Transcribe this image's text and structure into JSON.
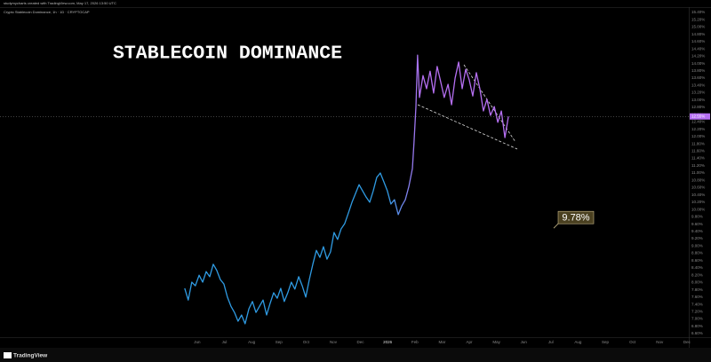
{
  "header": {
    "credit": "studymycharts created with TradingView.com, May 17, 2026 13:50 UTC",
    "symbol": "Crypto Stablecoin Dominance, 1h · 1D · CRYPTOCAP",
    "logo": "TradingView"
  },
  "chart_data": {
    "type": "line",
    "title": "STABLECOIN DOMINANCE",
    "x": [
      4.54,
      4.67,
      4.8,
      4.93,
      5.07,
      5.2,
      5.33,
      5.46,
      5.59,
      5.72,
      5.85,
      5.98,
      6.11,
      6.24,
      6.37,
      6.5,
      6.63,
      6.76,
      6.9,
      7.03,
      7.16,
      7.29,
      7.42,
      7.55,
      7.68,
      7.81,
      7.94,
      8.07,
      8.2,
      8.33,
      8.46,
      8.59,
      8.73,
      8.86,
      8.99,
      9.12,
      9.25,
      9.38,
      9.51,
      9.64,
      9.77,
      9.9,
      10.03,
      10.16,
      10.29,
      10.42,
      10.56,
      10.69,
      10.82,
      10.95,
      11.08,
      11.21,
      11.34,
      11.47,
      11.6,
      11.73,
      11.86,
      11.99,
      12.12,
      12.25,
      12.39,
      12.52,
      12.65,
      12.78,
      12.91,
      12.97,
      13.04,
      13.1,
      13.17,
      13.3,
      13.43,
      13.56,
      13.69,
      13.82,
      13.95,
      14.08,
      14.22,
      14.35,
      14.48,
      14.61,
      14.74,
      14.87,
      15.0,
      15.13,
      15.26,
      15.39,
      15.52,
      15.65,
      15.78,
      15.92,
      16.05,
      16.18,
      16.31,
      16.44
    ],
    "values": [
      7.84,
      7.52,
      8.01,
      7.91,
      8.2,
      8.01,
      8.3,
      8.16,
      8.5,
      8.33,
      8.08,
      7.96,
      7.6,
      7.35,
      7.18,
      6.94,
      7.11,
      6.87,
      7.28,
      7.48,
      7.18,
      7.35,
      7.52,
      7.11,
      7.43,
      7.72,
      7.57,
      7.84,
      7.48,
      7.72,
      8.01,
      7.82,
      8.16,
      7.91,
      7.6,
      8.08,
      8.5,
      8.88,
      8.69,
      8.98,
      8.64,
      8.84,
      9.37,
      9.18,
      9.47,
      9.61,
      9.91,
      10.2,
      10.44,
      10.68,
      10.51,
      10.34,
      10.2,
      10.51,
      10.88,
      11.0,
      10.76,
      10.51,
      10.15,
      10.27,
      9.86,
      10.1,
      10.27,
      10.63,
      11.12,
      11.85,
      12.82,
      14.23,
      13.07,
      13.67,
      13.31,
      13.79,
      13.19,
      13.92,
      13.5,
      13.07,
      13.43,
      12.87,
      13.6,
      14.04,
      13.31,
      13.84,
      13.55,
      13.11,
      13.75,
      13.31,
      12.7,
      13.02,
      12.58,
      12.82,
      12.39,
      12.7,
      11.97,
      12.55
    ],
    "last_value_label": "12.55%",
    "gradient": [
      "#2f9be3",
      "#b56ff2"
    ],
    "xlim": [
      -2.25,
      23.07
    ],
    "xticks": [
      {
        "value": 5,
        "label": "Jun"
      },
      {
        "value": 6,
        "label": "Jul"
      },
      {
        "value": 7,
        "label": "Aug"
      },
      {
        "value": 8,
        "label": "Sep"
      },
      {
        "value": 9,
        "label": "Oct"
      },
      {
        "value": 10,
        "label": "Nov"
      },
      {
        "value": 11,
        "label": "Dec"
      },
      {
        "value": 12,
        "label": "2026"
      },
      {
        "value": 13,
        "label": "Feb"
      },
      {
        "value": 14,
        "label": "Mar"
      },
      {
        "value": 15,
        "label": "Apr"
      },
      {
        "value": 16,
        "label": "May"
      },
      {
        "value": 17,
        "label": "Jun"
      },
      {
        "value": 18,
        "label": "Jul"
      },
      {
        "value": 19,
        "label": "Aug"
      },
      {
        "value": 20,
        "label": "Sep"
      },
      {
        "value": 21,
        "label": "Oct"
      },
      {
        "value": 22,
        "label": "Nov"
      },
      {
        "value": 23,
        "label": "Dec"
      }
    ],
    "ylim": [
      6.6,
      15.4
    ],
    "yticks": [
      {
        "value": 6.6,
        "label": "6.60%"
      },
      {
        "value": 6.8,
        "label": "6.80%"
      },
      {
        "value": 7,
        "label": "7.00%"
      },
      {
        "value": 7.2,
        "label": "7.20%"
      },
      {
        "value": 7.4,
        "label": "7.40%"
      },
      {
        "value": 7.6,
        "label": "7.60%"
      },
      {
        "value": 7.8,
        "label": "7.80%"
      },
      {
        "value": 8,
        "label": "8.00%"
      },
      {
        "value": 8.2,
        "label": "8.20%"
      },
      {
        "value": 8.4,
        "label": "8.40%"
      },
      {
        "value": 8.6,
        "label": "8.60%"
      },
      {
        "value": 8.8,
        "label": "8.80%"
      },
      {
        "value": 9,
        "label": "9.00%"
      },
      {
        "value": 9.2,
        "label": "9.20%"
      },
      {
        "value": 9.4,
        "label": "9.40%"
      },
      {
        "value": 9.6,
        "label": "9.60%"
      },
      {
        "value": 9.8,
        "label": "9.80%"
      },
      {
        "value": 10,
        "label": "10.00%"
      },
      {
        "value": 10.2,
        "label": "10.20%"
      },
      {
        "value": 10.4,
        "label": "10.40%"
      },
      {
        "value": 10.6,
        "label": "10.60%"
      },
      {
        "value": 10.8,
        "label": "10.80%"
      },
      {
        "value": 11,
        "label": "11.00%"
      },
      {
        "value": 11.2,
        "label": "11.20%"
      },
      {
        "value": 11.4,
        "label": "11.40%"
      },
      {
        "value": 11.6,
        "label": "11.60%"
      },
      {
        "value": 11.8,
        "label": "11.80%"
      },
      {
        "value": 12,
        "label": "12.00%"
      },
      {
        "value": 12.2,
        "label": "12.20%"
      },
      {
        "value": 12.4,
        "label": "12.40%"
      },
      {
        "value": 12.6,
        "label": "12.60%"
      },
      {
        "value": 12.8,
        "label": "12.80%"
      },
      {
        "value": 13,
        "label": "13.00%"
      },
      {
        "value": 13.2,
        "label": "13.20%"
      },
      {
        "value": 13.4,
        "label": "13.40%"
      },
      {
        "value": 13.6,
        "label": "13.60%"
      },
      {
        "value": 13.8,
        "label": "13.80%"
      },
      {
        "value": 14,
        "label": "14.00%"
      },
      {
        "value": 14.2,
        "label": "14.20%"
      },
      {
        "value": 14.4,
        "label": "14.40%"
      },
      {
        "value": 14.6,
        "label": "14.60%"
      },
      {
        "value": 14.8,
        "label": "14.80%"
      },
      {
        "value": 15,
        "label": "15.00%"
      },
      {
        "value": 15.2,
        "label": "15.20%"
      },
      {
        "value": 15.4,
        "label": "15.40%"
      }
    ],
    "annotation": {
      "value": 9.78,
      "label": "9.78%"
    }
  }
}
